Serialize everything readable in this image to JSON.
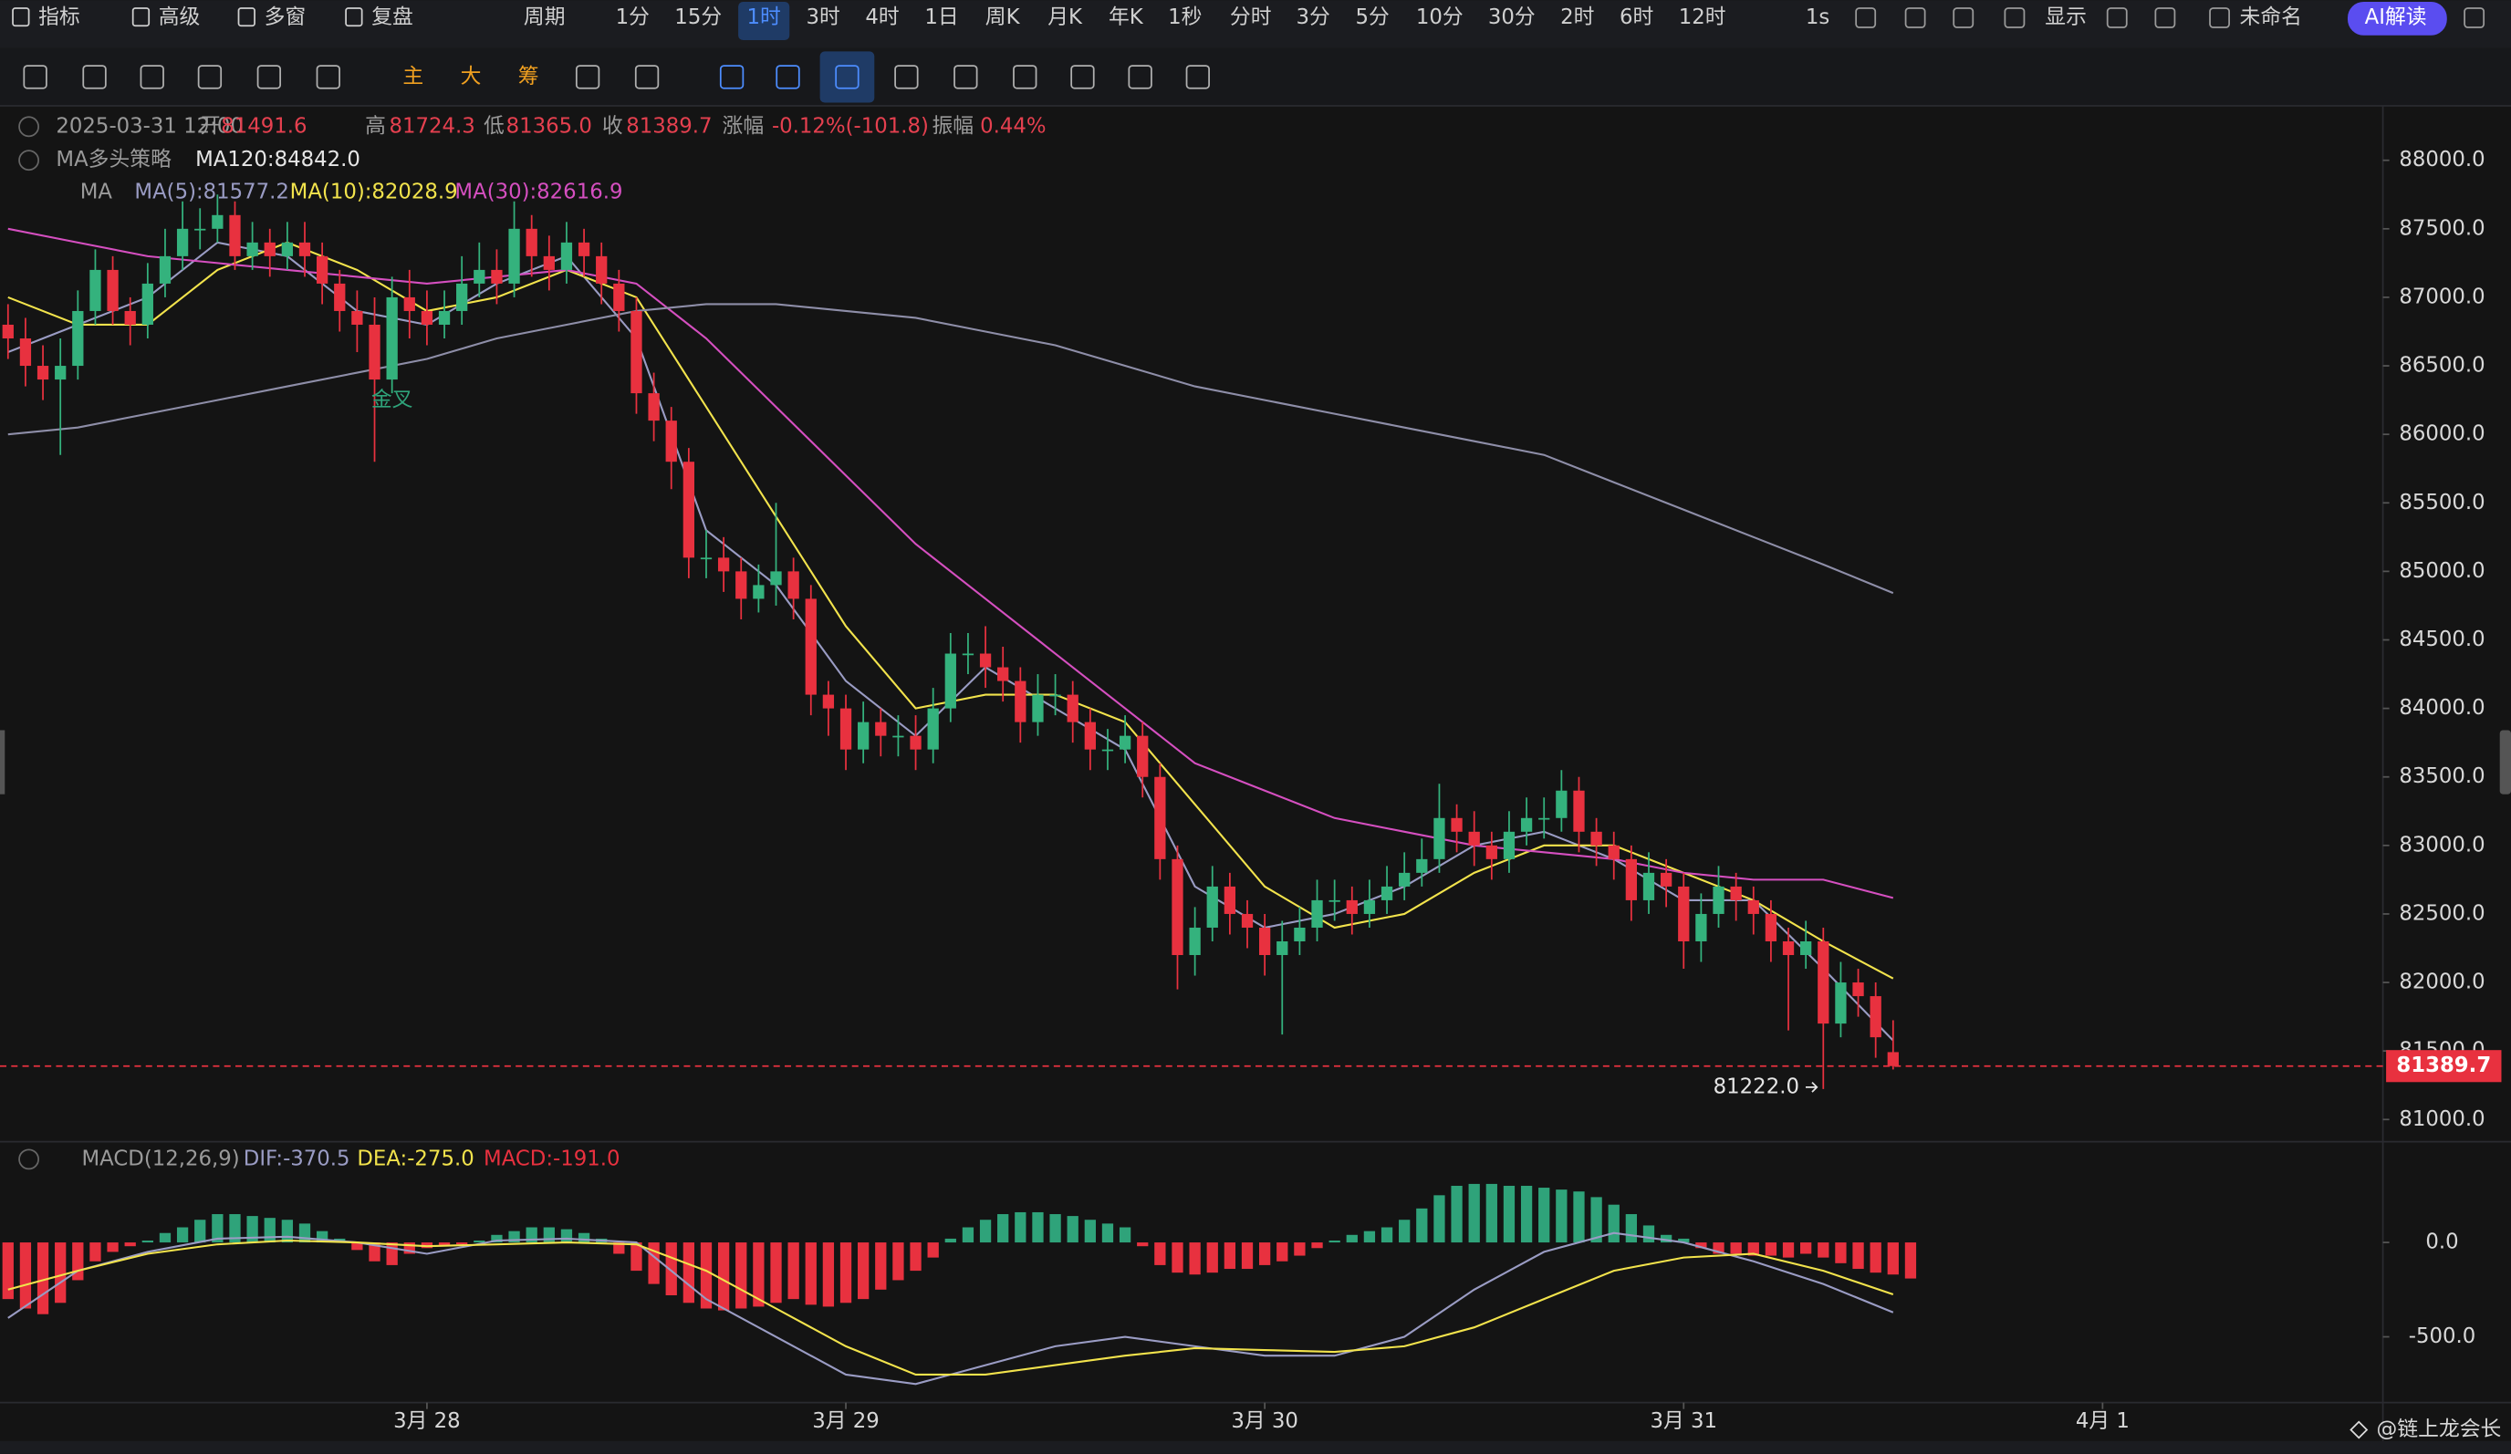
{
  "toolbar": {
    "tabs": [
      "指标",
      "高级",
      "多窗",
      "复盘",
      "周期",
      "1分",
      "15分",
      "1时",
      "3时",
      "4时",
      "1日",
      "周K",
      "月K",
      "年K",
      "1秒",
      "分时",
      "3分",
      "5分",
      "10分",
      "30分",
      "2时",
      "6时",
      "12时",
      "1s",
      "显示",
      "未命名",
      "AI解读"
    ],
    "active": "1时",
    "tools": [
      "主",
      "大",
      "筹"
    ]
  },
  "info": {
    "time": "2025-03-31 12:00",
    "ohlc": [
      [
        "开",
        "81491.6"
      ],
      [
        "高",
        "81724.3"
      ],
      [
        "低",
        "81365.0"
      ],
      [
        "收",
        "81389.7"
      ],
      [
        "涨幅",
        "-0.12%(-101.8)"
      ],
      [
        "振幅",
        "0.44%"
      ]
    ],
    "strategy": "MA多头策略",
    "ma_group": "MA",
    "macd_group": "MACD(12,26,9)"
  },
  "watermark": "@链上龙会长",
  "chart_data": [
    {
      "type": "candlestick",
      "up_color": "#34b27d",
      "down_color": "#e8313f",
      "xlim": [
        -0.46,
        136.06
      ],
      "ylim": [
        80850,
        88374
      ],
      "yticks": [
        {
          "value": 81000,
          "label": "81000.0"
        },
        {
          "value": 81500,
          "label": "81500.0"
        },
        {
          "value": 82000,
          "label": "82000.0"
        },
        {
          "value": 82500,
          "label": "82500.0"
        },
        {
          "value": 83000,
          "label": "83000.0"
        },
        {
          "value": 83500,
          "label": "83500.0"
        },
        {
          "value": 84000,
          "label": "84000.0"
        },
        {
          "value": 84500,
          "label": "84500.0"
        },
        {
          "value": 85000,
          "label": "85000.0"
        },
        {
          "value": 85500,
          "label": "85500.0"
        },
        {
          "value": 86000,
          "label": "86000.0"
        },
        {
          "value": 86500,
          "label": "86500.0"
        },
        {
          "value": 87000,
          "label": "87000.0"
        },
        {
          "value": 87500,
          "label": "87500.0"
        },
        {
          "value": 88000,
          "label": "88000.0"
        }
      ],
      "open": [
        86800,
        86700,
        86500,
        86400,
        86500,
        86900,
        87200,
        86900,
        86800,
        87100,
        87300,
        87500,
        87500,
        87600,
        87300,
        87400,
        87300,
        87400,
        87300,
        87100,
        86900,
        86800,
        86400,
        87000,
        86900,
        86800,
        86900,
        87100,
        87200,
        87100,
        87500,
        87300,
        87200,
        87400,
        87300,
        87100,
        86900,
        86300,
        86100,
        85800,
        85100,
        85100,
        85000,
        84800,
        84900,
        85000,
        84800,
        84100,
        84000,
        83700,
        83900,
        83800,
        83800,
        83700,
        84000,
        84400,
        84400,
        84300,
        84200,
        83900,
        84100,
        84100,
        83900,
        83700,
        83700,
        83800,
        83500,
        82900,
        82200,
        82400,
        82700,
        82500,
        82400,
        82200,
        82300,
        82400,
        82600,
        82600,
        82500,
        82600,
        82700,
        82800,
        82900,
        83200,
        83100,
        83000,
        82900,
        83100,
        83200,
        83200,
        83400,
        83100,
        83000,
        82900,
        82600,
        82800,
        82700,
        82300,
        82500,
        82700,
        82600,
        82500,
        82300,
        82200,
        82300,
        81700,
        82000,
        81900,
        81491.6
      ],
      "high": [
        86950,
        86850,
        86650,
        86700,
        87050,
        87350,
        87300,
        87000,
        87250,
        87500,
        87700,
        87650,
        87750,
        87700,
        87550,
        87500,
        87550,
        87550,
        87400,
        87200,
        87050,
        87000,
        87150,
        87200,
        87050,
        87050,
        87300,
        87400,
        87350,
        87700,
        87600,
        87450,
        87550,
        87500,
        87400,
        87200,
        87000,
        86450,
        86200,
        85900,
        85300,
        85250,
        85100,
        85050,
        85500,
        85100,
        84900,
        84200,
        84100,
        84050,
        84000,
        83950,
        83950,
        84150,
        84550,
        84550,
        84600,
        84450,
        84300,
        84250,
        84250,
        84200,
        84000,
        83850,
        83950,
        83900,
        83600,
        83000,
        82550,
        82850,
        82800,
        82600,
        82500,
        82450,
        82550,
        82750,
        82750,
        82700,
        82750,
        82850,
        82950,
        83050,
        83450,
        83300,
        83250,
        83100,
        83250,
        83350,
        83350,
        83550,
        83500,
        83200,
        83100,
        83000,
        82950,
        82900,
        82800,
        82650,
        82850,
        82800,
        82700,
        82600,
        82400,
        82450,
        82400,
        82150,
        82100,
        82000,
        81724.3
      ],
      "low": [
        86550,
        86350,
        86250,
        85850,
        86400,
        86800,
        86800,
        86650,
        86700,
        87000,
        87200,
        87350,
        87400,
        87200,
        87200,
        87150,
        87200,
        87150,
        86950,
        86750,
        86600,
        85800,
        86300,
        86700,
        86650,
        86700,
        86800,
        87000,
        86950,
        87000,
        87150,
        87050,
        87100,
        87150,
        86950,
        86750,
        86150,
        85950,
        85600,
        84950,
        84950,
        84850,
        84650,
        84700,
        84750,
        84650,
        83950,
        83800,
        83550,
        83600,
        83650,
        83650,
        83550,
        83600,
        83900,
        84250,
        84150,
        84050,
        83750,
        83800,
        83950,
        83750,
        83550,
        83550,
        83600,
        83350,
        82750,
        81950,
        82050,
        82300,
        82350,
        82250,
        82050,
        81620,
        82200,
        82300,
        82450,
        82350,
        82400,
        82500,
        82600,
        82700,
        82800,
        82950,
        82850,
        82750,
        82800,
        83000,
        83050,
        83100,
        82950,
        82850,
        82750,
        82450,
        82500,
        82550,
        82100,
        82150,
        82400,
        82450,
        82350,
        82150,
        81650,
        82100,
        81222,
        81600,
        81750,
        81450,
        81365.0
      ],
      "close": [
        86700,
        86500,
        86400,
        86500,
        86900,
        87200,
        86900,
        86800,
        87100,
        87300,
        87500,
        87500,
        87600,
        87300,
        87400,
        87300,
        87400,
        87300,
        87100,
        86900,
        86800,
        86400,
        87000,
        86900,
        86800,
        86900,
        87100,
        87200,
        87100,
        87500,
        87300,
        87200,
        87400,
        87300,
        87100,
        86900,
        86300,
        86100,
        85800,
        85100,
        85100,
        85000,
        84800,
        84900,
        85000,
        84800,
        84100,
        84000,
        83700,
        83900,
        83800,
        83800,
        83700,
        84000,
        84400,
        84400,
        84300,
        84200,
        83900,
        84100,
        84100,
        83900,
        83700,
        83700,
        83800,
        83500,
        82900,
        82200,
        82400,
        82700,
        82500,
        82400,
        82200,
        82300,
        82400,
        82600,
        82600,
        82500,
        82600,
        82700,
        82800,
        82900,
        83200,
        83100,
        83000,
        82900,
        83100,
        83200,
        83200,
        83400,
        83100,
        83000,
        82900,
        82600,
        82800,
        82700,
        82300,
        82500,
        82700,
        82600,
        82500,
        82300,
        82200,
        82300,
        81700,
        82000,
        81900,
        81600,
        81389.7
      ],
      "series": [
        {
          "name": "MA(5):81577.2",
          "color": "#9a9cc4",
          "x": [
            0,
            4,
            8,
            12,
            16,
            20,
            24,
            28,
            32,
            36,
            40,
            44,
            48,
            52,
            56,
            60,
            64,
            68,
            72,
            76,
            80,
            84,
            88,
            92,
            96,
            100,
            104,
            108
          ],
          "values": [
            86600,
            86800,
            87000,
            87400,
            87300,
            86900,
            86800,
            87100,
            87300,
            86700,
            85300,
            84900,
            84200,
            83800,
            84300,
            84000,
            83700,
            82700,
            82400,
            82500,
            82700,
            83000,
            83100,
            82900,
            82600,
            82600,
            82100,
            81577.2
          ]
        },
        {
          "name": "MA(10):82028.9",
          "color": "#f2e34c",
          "x": [
            0,
            4,
            8,
            12,
            16,
            20,
            24,
            28,
            32,
            36,
            40,
            44,
            48,
            52,
            56,
            60,
            64,
            68,
            72,
            76,
            80,
            84,
            88,
            92,
            96,
            100,
            104,
            108
          ],
          "values": [
            87000,
            86800,
            86800,
            87200,
            87400,
            87200,
            86900,
            87000,
            87200,
            87000,
            86200,
            85400,
            84600,
            84000,
            84100,
            84100,
            83900,
            83300,
            82700,
            82400,
            82500,
            82800,
            83000,
            83000,
            82800,
            82600,
            82300,
            82028.9
          ]
        },
        {
          "name": "MA(30):82616.9",
          "color": "#d54fc0",
          "x": [
            0,
            4,
            8,
            12,
            16,
            20,
            24,
            28,
            32,
            36,
            40,
            44,
            48,
            52,
            56,
            60,
            64,
            68,
            72,
            76,
            80,
            84,
            88,
            92,
            96,
            100,
            104,
            108
          ],
          "values": [
            87500,
            87400,
            87300,
            87250,
            87200,
            87150,
            87100,
            87150,
            87200,
            87100,
            86700,
            86200,
            85700,
            85200,
            84800,
            84400,
            84000,
            83600,
            83400,
            83200,
            83100,
            83000,
            82950,
            82900,
            82800,
            82750,
            82750,
            82616.9
          ]
        },
        {
          "name": "MA120:84842.0",
          "color": "#8e8ea8",
          "x": [
            0,
            4,
            8,
            12,
            16,
            20,
            24,
            28,
            32,
            36,
            40,
            44,
            48,
            52,
            56,
            60,
            64,
            68,
            72,
            76,
            80,
            84,
            88,
            92,
            96,
            100,
            104,
            108
          ],
          "values": [
            86000,
            86050,
            86150,
            86250,
            86350,
            86450,
            86550,
            86700,
            86800,
            86900,
            86950,
            86950,
            86900,
            86850,
            86750,
            86650,
            86500,
            86350,
            86250,
            86150,
            86050,
            85950,
            85850,
            85650,
            85450,
            85250,
            85050,
            84842
          ]
        }
      ],
      "annotations": [
        "金叉",
        "81222.0"
      ],
      "last_price_line": true
    },
    {
      "type": "macd",
      "up_color": "#2fa37a",
      "down_color": "#e8313f",
      "xlim": [
        -0.46,
        136.06
      ],
      "ylim": [
        -840,
        517
      ],
      "yticks": [
        {
          "value": 0,
          "label": "0.0"
        },
        {
          "value": -500,
          "label": "-500.0"
        }
      ],
      "xticks": [
        {
          "value": 24,
          "label": "3月 28"
        },
        {
          "value": 48,
          "label": "3月 29"
        },
        {
          "value": 72,
          "label": "3月 30"
        },
        {
          "value": 96,
          "label": "3月 31"
        },
        {
          "value": 120,
          "label": "4月 1"
        }
      ],
      "histogram_name": "MACD:-191.0",
      "histogram": [
        -300,
        -350,
        -380,
        -320,
        -200,
        -100,
        -50,
        -20,
        10,
        50,
        80,
        120,
        150,
        150,
        140,
        130,
        120,
        100,
        60,
        20,
        -40,
        -100,
        -120,
        -60,
        -30,
        -20,
        -10,
        10,
        40,
        60,
        80,
        80,
        70,
        50,
        20,
        -60,
        -150,
        -220,
        -280,
        -320,
        -350,
        -360,
        -350,
        -340,
        -320,
        -300,
        -330,
        -340,
        -320,
        -300,
        -250,
        -200,
        -150,
        -80,
        20,
        80,
        120,
        150,
        160,
        160,
        150,
        140,
        120,
        100,
        80,
        -20,
        -120,
        -160,
        -170,
        -160,
        -140,
        -140,
        -120,
        -100,
        -70,
        -30,
        10,
        40,
        60,
        80,
        120,
        180,
        250,
        300,
        310,
        310,
        300,
        300,
        290,
        280,
        270,
        240,
        200,
        150,
        90,
        40,
        20,
        -30,
        -60,
        -60,
        -70,
        -70,
        -80,
        -60,
        -80,
        -110,
        -140,
        -160,
        -170,
        -191
      ],
      "series": [
        {
          "name": "DIF:-370.5",
          "color": "#9a9cc4",
          "x": [
            0,
            4,
            8,
            12,
            16,
            20,
            24,
            28,
            32,
            36,
            40,
            44,
            48,
            52,
            56,
            60,
            64,
            68,
            72,
            76,
            80,
            84,
            88,
            92,
            96,
            100,
            104,
            108
          ],
          "values": [
            -400,
            -150,
            -50,
            20,
            30,
            0,
            -60,
            10,
            20,
            0,
            -300,
            -500,
            -700,
            -750,
            -650,
            -550,
            -500,
            -550,
            -600,
            -600,
            -500,
            -250,
            -50,
            50,
            0,
            -100,
            -220,
            -370.5
          ]
        },
        {
          "name": "DEA:-275.0",
          "color": "#f2e34c",
          "x": [
            0,
            4,
            8,
            12,
            16,
            20,
            24,
            28,
            32,
            36,
            40,
            44,
            48,
            52,
            56,
            60,
            64,
            68,
            72,
            76,
            80,
            84,
            88,
            92,
            96,
            100,
            104,
            108
          ],
          "values": [
            -250,
            -150,
            -60,
            -10,
            10,
            0,
            -20,
            -10,
            0,
            -10,
            -150,
            -350,
            -550,
            -700,
            -700,
            -650,
            -600,
            -560,
            -570,
            -580,
            -550,
            -450,
            -300,
            -150,
            -80,
            -60,
            -150,
            -275
          ]
        }
      ]
    }
  ]
}
